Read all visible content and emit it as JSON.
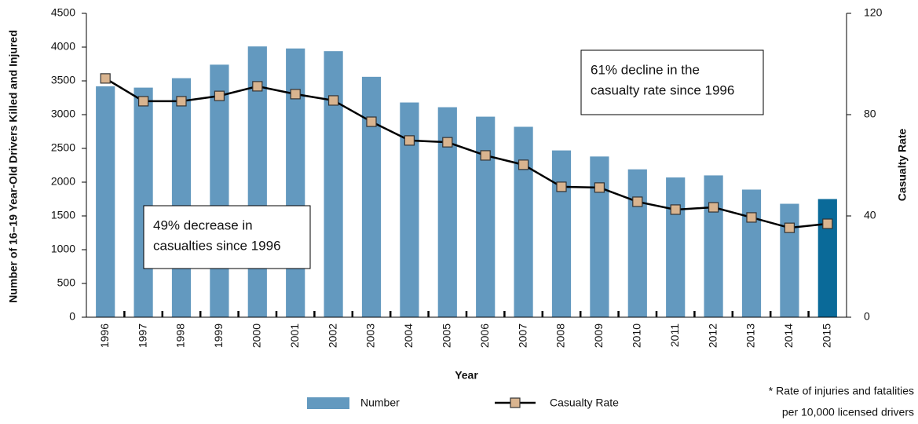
{
  "chart_data": {
    "type": "bar_line",
    "categories": [
      "1996",
      "1997",
      "1998",
      "1999",
      "2000",
      "2001",
      "2002",
      "2003",
      "2004",
      "2005",
      "2006",
      "2007",
      "2008",
      "2009",
      "2010",
      "2011",
      "2012",
      "2013",
      "2014",
      "2015"
    ],
    "series": [
      {
        "name": "Number",
        "type": "bar",
        "color": "#6399bf",
        "colors": [
          "#6399bf",
          "#6399bf",
          "#6399bf",
          "#6399bf",
          "#6399bf",
          "#6399bf",
          "#6399bf",
          "#6399bf",
          "#6399bf",
          "#6399bf",
          "#6399bf",
          "#6399bf",
          "#6399bf",
          "#6399bf",
          "#6399bf",
          "#6399bf",
          "#6399bf",
          "#6399bf",
          "#6399bf",
          "#0a6a99"
        ],
        "values": [
          3420,
          3400,
          3540,
          3740,
          4010,
          3980,
          3940,
          3560,
          3180,
          3110,
          2970,
          2820,
          2470,
          2380,
          2190,
          2070,
          2100,
          1890,
          1680,
          1750
        ]
      },
      {
        "name": "Casualty Rate",
        "type": "line",
        "axis": "y2",
        "color": "#000000",
        "marker_color": "#d9b48f",
        "values": [
          94.3,
          85.3,
          85.3,
          87.4,
          91.2,
          88.1,
          85.6,
          77.2,
          69.8,
          69.1,
          63.9,
          60.2,
          51.5,
          51.2,
          45.6,
          42.5,
          43.4,
          39.4,
          35.3,
          36.9
        ]
      }
    ],
    "xlabel": "Year",
    "ylabel": "Number of 16–19 Year-Old Drivers Killed and Injured",
    "y2label": "Casualty Rate",
    "ylim": [
      0,
      4500
    ],
    "yticks": [
      0,
      500,
      1000,
      1500,
      2000,
      2500,
      3000,
      3500,
      4000,
      4500
    ],
    "y2lim": [
      0,
      120
    ],
    "y2ticks": [
      0,
      40,
      80,
      120
    ],
    "annotations": [
      {
        "lines": [
          "61% decline in the",
          "casualty rate since 1996"
        ]
      },
      {
        "lines": [
          "49% decrease in",
          "casualties since 1996"
        ]
      }
    ],
    "footnote": [
      "* Rate of injuries and fatalities",
      "per 10,000 licensed drivers"
    ],
    "legend": "bottom"
  }
}
